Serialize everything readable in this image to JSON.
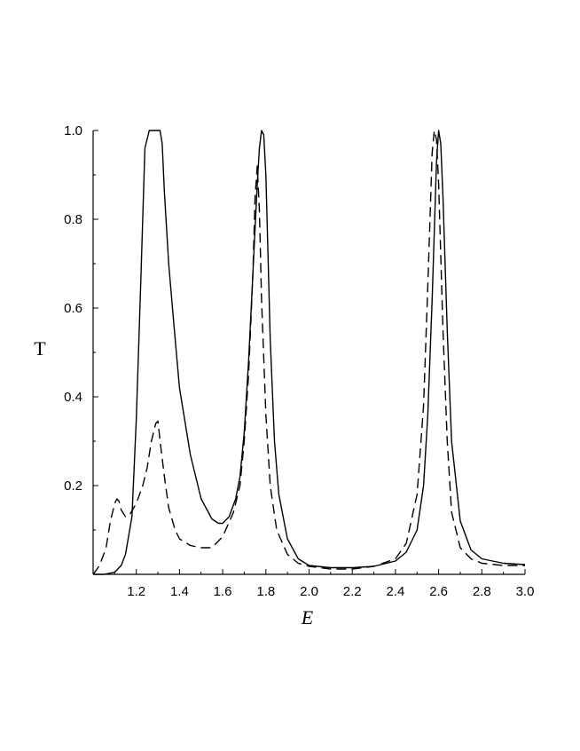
{
  "chart_data": {
    "type": "line",
    "title": "",
    "xlabel": "E",
    "ylabel": "T",
    "xlim": [
      1.0,
      3.0
    ],
    "ylim": [
      0.0,
      1.0
    ],
    "x_ticks": [
      1.2,
      1.4,
      1.6,
      1.8,
      2.0,
      2.2,
      2.4,
      2.6,
      2.8,
      3.0
    ],
    "x_tick_labels": [
      "1.2",
      "1.4",
      "1.6",
      "1.8",
      "2.0",
      "2.2",
      "2.4",
      "2.6",
      "2.8",
      "3.0"
    ],
    "y_ticks": [
      0.2,
      0.4,
      0.6,
      0.8,
      1.0
    ],
    "y_tick_labels": [
      "0.2",
      "0.4",
      "0.6",
      "0.8",
      "1.0"
    ],
    "grid": false,
    "legend": "none",
    "series": [
      {
        "style": "solid",
        "x": [
          1.0,
          1.05,
          1.1,
          1.13,
          1.15,
          1.18,
          1.2,
          1.22,
          1.24,
          1.26,
          1.27,
          1.28,
          1.3,
          1.31,
          1.32,
          1.33,
          1.35,
          1.38,
          1.4,
          1.45,
          1.5,
          1.55,
          1.58,
          1.6,
          1.63,
          1.66,
          1.68,
          1.7,
          1.72,
          1.74,
          1.76,
          1.77,
          1.78,
          1.79,
          1.8,
          1.81,
          1.82,
          1.84,
          1.86,
          1.9,
          1.95,
          2.0,
          2.1,
          2.2,
          2.3,
          2.4,
          2.45,
          2.5,
          2.53,
          2.55,
          2.57,
          2.59,
          2.6,
          2.61,
          2.62,
          2.64,
          2.66,
          2.7,
          2.75,
          2.8,
          2.9,
          3.0
        ],
        "y": [
          0.0,
          0.0,
          0.005,
          0.02,
          0.045,
          0.13,
          0.35,
          0.65,
          0.96,
          1.0,
          1.0,
          1.0,
          1.0,
          1.0,
          0.97,
          0.86,
          0.7,
          0.53,
          0.42,
          0.27,
          0.17,
          0.125,
          0.115,
          0.115,
          0.13,
          0.17,
          0.22,
          0.32,
          0.48,
          0.68,
          0.88,
          0.96,
          1.0,
          0.99,
          0.9,
          0.72,
          0.53,
          0.3,
          0.18,
          0.08,
          0.035,
          0.02,
          0.015,
          0.015,
          0.018,
          0.03,
          0.05,
          0.1,
          0.2,
          0.36,
          0.62,
          0.93,
          1.0,
          0.97,
          0.85,
          0.55,
          0.3,
          0.12,
          0.055,
          0.035,
          0.025,
          0.022
        ]
      },
      {
        "style": "dashed",
        "x": [
          1.0,
          1.03,
          1.06,
          1.08,
          1.1,
          1.11,
          1.12,
          1.13,
          1.15,
          1.17,
          1.2,
          1.23,
          1.25,
          1.27,
          1.29,
          1.3,
          1.31,
          1.33,
          1.35,
          1.38,
          1.4,
          1.45,
          1.5,
          1.55,
          1.6,
          1.65,
          1.68,
          1.7,
          1.72,
          1.74,
          1.75,
          1.76,
          1.77,
          1.78,
          1.8,
          1.82,
          1.85,
          1.9,
          1.95,
          2.0,
          2.1,
          2.2,
          2.3,
          2.4,
          2.45,
          2.5,
          2.53,
          2.55,
          2.57,
          2.58,
          2.59,
          2.6,
          2.62,
          2.64,
          2.66,
          2.7,
          2.75,
          2.8,
          2.9,
          3.0
        ],
        "y": [
          0.0,
          0.02,
          0.06,
          0.12,
          0.16,
          0.17,
          0.165,
          0.145,
          0.13,
          0.135,
          0.16,
          0.2,
          0.24,
          0.3,
          0.34,
          0.345,
          0.3,
          0.22,
          0.15,
          0.1,
          0.08,
          0.065,
          0.06,
          0.06,
          0.085,
          0.14,
          0.2,
          0.3,
          0.45,
          0.68,
          0.85,
          0.92,
          0.82,
          0.62,
          0.36,
          0.2,
          0.1,
          0.045,
          0.025,
          0.018,
          0.012,
          0.012,
          0.018,
          0.035,
          0.07,
          0.18,
          0.38,
          0.65,
          0.95,
          1.0,
          0.98,
          0.88,
          0.55,
          0.3,
          0.14,
          0.06,
          0.035,
          0.025,
          0.02,
          0.02
        ]
      }
    ]
  }
}
